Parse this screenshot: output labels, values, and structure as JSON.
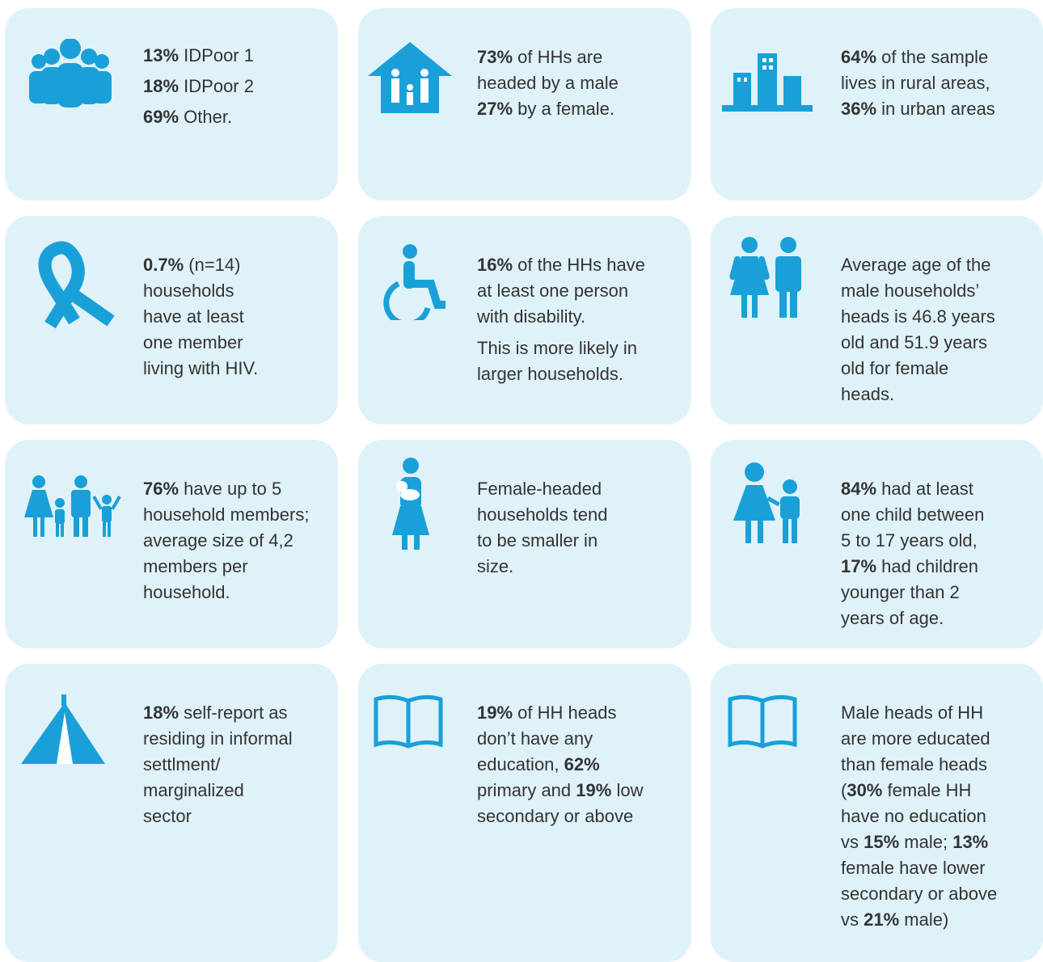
{
  "cards": [
    {
      "paragraphs": [
        [
          [
            {
              "bold": "13%"
            },
            " IDPoor 1"
          ],
          [
            {
              "bold": "18%"
            },
            " IDPoor 2"
          ],
          [
            {
              "bold": "69%"
            },
            " Other."
          ]
        ]
      ]
    },
    {
      "paragraphs": [
        [
          [
            {
              "bold": "73%"
            },
            " of HHs are"
          ],
          [
            "headed by a male"
          ],
          [
            {
              "bold": "27%"
            },
            " by a female."
          ]
        ]
      ]
    },
    {
      "paragraphs": [
        [
          [
            {
              "bold": "64%"
            },
            " of the sample"
          ],
          [
            "lives in rural areas,"
          ],
          [
            {
              "bold": "36%"
            },
            " in urban areas"
          ]
        ]
      ]
    },
    {
      "paragraphs": [
        [
          [
            {
              "bold": "0.7%"
            },
            " (n=14)"
          ],
          [
            "households"
          ],
          [
            "have at least"
          ],
          [
            "one member"
          ],
          [
            "living with HIV."
          ]
        ]
      ]
    },
    {
      "paragraphs": [
        [
          [
            {
              "bold": "16%"
            },
            " of the HHs have"
          ],
          [
            "at least one person"
          ],
          [
            "with disability."
          ]
        ],
        [
          [
            "This is more likely in"
          ],
          [
            "larger households."
          ]
        ]
      ]
    },
    {
      "paragraphs": [
        [
          [
            "Average age of the"
          ],
          [
            "male households’"
          ],
          [
            "heads is 46.8 years"
          ],
          [
            "old and 51.9 years"
          ],
          [
            "old for female"
          ],
          [
            "heads."
          ]
        ]
      ]
    },
    {
      "paragraphs": [
        [
          [
            {
              "bold": "76%"
            },
            " have up to 5"
          ],
          [
            "household members;"
          ],
          [
            "average size of 4,2"
          ],
          [
            "members per"
          ],
          [
            "household."
          ]
        ]
      ]
    },
    {
      "paragraphs": [
        [
          [
            "Female-headed"
          ],
          [
            "households tend"
          ],
          [
            "to be smaller in"
          ],
          [
            "size."
          ]
        ]
      ]
    },
    {
      "paragraphs": [
        [
          [
            {
              "bold": "84%"
            },
            " had at least"
          ],
          [
            "one child between"
          ],
          [
            "5 to 17 years old,"
          ],
          [
            {
              "bold": "17%"
            },
            " had children"
          ],
          [
            "younger than 2"
          ],
          [
            "years of age."
          ]
        ]
      ]
    },
    {
      "paragraphs": [
        [
          [
            {
              "bold": "18%"
            },
            " self-report as"
          ],
          [
            "residing in informal"
          ],
          [
            "settlment/"
          ],
          [
            "marginalized"
          ],
          [
            "sector"
          ]
        ]
      ]
    },
    {
      "paragraphs": [
        [
          [
            {
              "bold": "19%"
            },
            " of HH heads"
          ],
          [
            "don’t have any"
          ],
          [
            "education, ",
            {
              "bold": "62%"
            }
          ],
          [
            "primary and ",
            {
              "bold": "19%"
            },
            " low"
          ],
          [
            "secondary or above"
          ]
        ]
      ]
    },
    {
      "paragraphs": [
        [
          [
            "Male heads of HH"
          ],
          [
            "are more educated"
          ],
          [
            "than female heads"
          ],
          [
            "(",
            {
              "bold": "30%"
            },
            " female HH"
          ],
          [
            "have no education"
          ],
          [
            "vs ",
            {
              "bold": "15%"
            },
            " male; ",
            {
              "bold": "13%"
            }
          ],
          [
            "female have lower"
          ],
          [
            "secondary or above"
          ],
          [
            "vs ",
            {
              "bold": "21%"
            },
            " male)"
          ]
        ]
      ]
    }
  ]
}
